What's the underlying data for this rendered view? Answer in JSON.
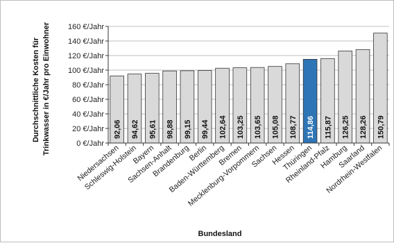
{
  "chart_data": {
    "type": "bar",
    "title": "",
    "xlabel": "Bundesland",
    "ylabel_line1": "Durchschnittliche Kosten für",
    "ylabel_line2": "Trinkwasser in €/Jahr pro Einwohner",
    "ylim": [
      0,
      160
    ],
    "yticks": [
      0,
      20,
      40,
      60,
      80,
      100,
      120,
      140,
      160
    ],
    "ytick_suffix": " €/Jahr",
    "grid": true,
    "categories": [
      "Niedersachsen",
      "Schleswig-Holstein",
      "Bayern",
      "Sachsen-Anhalt",
      "Brandenburg",
      "Berlin",
      "Baden-Württemberg",
      "Bremen",
      "Mecklenburg-Vorpommern",
      "Sachsen",
      "Hessen",
      "Thüringen",
      "Rheinland-Pfalz",
      "Hamburg",
      "Saarland",
      "Nordrhein-Westfalen"
    ],
    "values": [
      92.06,
      94.62,
      95.61,
      98.88,
      99.15,
      99.44,
      102.64,
      103.25,
      103.65,
      105.08,
      108.77,
      114.86,
      115.87,
      126.25,
      128.26,
      150.79
    ],
    "value_labels": [
      "92,06",
      "94,62",
      "95,61",
      "98,88",
      "99,15",
      "99,44",
      "102,64",
      "103,25",
      "103,65",
      "105,08",
      "108,77",
      "114,86",
      "115,87",
      "126,25",
      "128,26",
      "150,79"
    ],
    "highlight": "Thüringen",
    "colors": {
      "bar": "#d9d9d9",
      "highlight": "#2e75b6",
      "bar_stroke": "#333333",
      "grid": "#bfbfbf"
    }
  }
}
